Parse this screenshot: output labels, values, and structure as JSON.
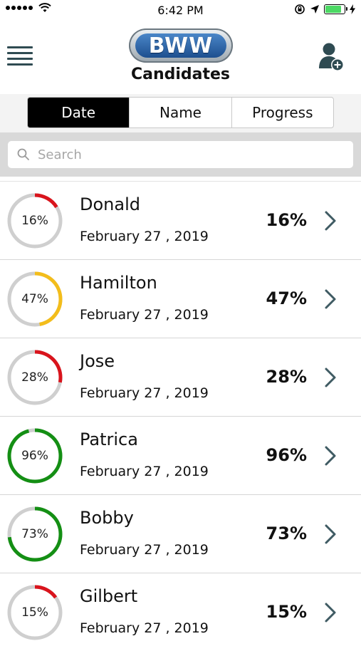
{
  "status_bar": {
    "time": "6:42 PM",
    "battery_level": 0.85,
    "battery_color": "#4cd964"
  },
  "header": {
    "logo_text": "BWW",
    "title": "Candidates"
  },
  "tabs": [
    {
      "label": "Date",
      "active": true
    },
    {
      "label": "Name",
      "active": false
    },
    {
      "label": "Progress",
      "active": false
    }
  ],
  "search": {
    "placeholder": "Search",
    "value": ""
  },
  "colors": {
    "low": "#d9141c",
    "mid": "#f3bd1b",
    "high": "#148f14",
    "track": "#cfcfcf",
    "chevron": "#3f5b63"
  },
  "candidates": [
    {
      "name": "Donald",
      "date": "February 27 , 2019",
      "progress": 16,
      "progress_label": "16%",
      "status": "low"
    },
    {
      "name": "Hamilton",
      "date": "February 27 , 2019",
      "progress": 47,
      "progress_label": "47%",
      "status": "mid"
    },
    {
      "name": "Jose",
      "date": "February 27 , 2019",
      "progress": 28,
      "progress_label": "28%",
      "status": "low"
    },
    {
      "name": "Patrica",
      "date": "February 27 , 2019",
      "progress": 96,
      "progress_label": "96%",
      "status": "high"
    },
    {
      "name": "Bobby",
      "date": "February 27 , 2019",
      "progress": 73,
      "progress_label": "73%",
      "status": "high"
    },
    {
      "name": "Gilbert",
      "date": "February 27 , 2019",
      "progress": 15,
      "progress_label": "15%",
      "status": "low"
    }
  ]
}
